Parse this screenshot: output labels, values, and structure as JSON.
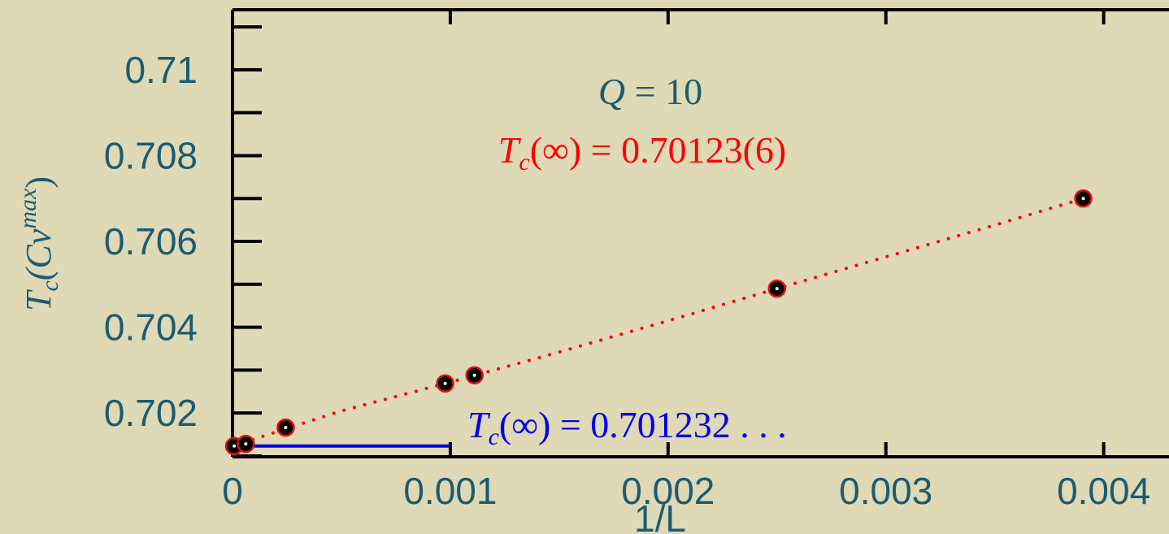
{
  "chart_data": {
    "type": "scatter",
    "xlabel": "1/L",
    "ylabel": {
      "base": "T",
      "sub": "c",
      "body": "(C",
      "v": "v",
      "sup": "max",
      "close": ")"
    },
    "xlim": [
      0,
      0.0043
    ],
    "ylim": [
      0.70098,
      0.7114
    ],
    "xticks": [
      {
        "value": 0,
        "label": "0"
      },
      {
        "value": 0.001,
        "label": "0.001"
      },
      {
        "value": 0.002,
        "label": "0.002"
      },
      {
        "value": 0.003,
        "label": "0.003"
      },
      {
        "value": 0.004,
        "label": "0.004"
      }
    ],
    "yticks": [
      {
        "value": 0.702,
        "label": "0.702"
      },
      {
        "value": 0.704,
        "label": "0.704"
      },
      {
        "value": 0.706,
        "label": "0.706"
      },
      {
        "value": 0.708,
        "label": "0.708"
      },
      {
        "value": 0.71,
        "label": "0.71"
      }
    ],
    "y_minor_ticks": [
      0.701,
      0.703,
      0.705,
      0.707,
      0.709,
      0.711
    ],
    "series": [
      {
        "points": [
          {
            "x": 7.6e-06,
            "y": 0.70123
          },
          {
            "x": 6.1e-05,
            "y": 0.70128
          },
          {
            "x": 0.0002441,
            "y": 0.70166
          },
          {
            "x": 0.0009766,
            "y": 0.70269
          },
          {
            "x": 0.0011111,
            "y": 0.70288
          },
          {
            "x": 0.0025,
            "y": 0.7049
          },
          {
            "x": 0.0039063,
            "y": 0.707
          }
        ],
        "marker_color": "#000000",
        "marker_edge": "#e01010"
      }
    ],
    "fit_line": {
      "style": "dotted",
      "color": "#ff0000",
      "points": [
        {
          "x": 0.0,
          "y": 0.70123
        },
        {
          "x": 0.0005,
          "y": 0.70205
        },
        {
          "x": 0.001,
          "y": 0.70272
        },
        {
          "x": 0.0015,
          "y": 0.70342
        },
        {
          "x": 0.002,
          "y": 0.70415
        },
        {
          "x": 0.0025,
          "y": 0.7049
        },
        {
          "x": 0.003,
          "y": 0.70564
        },
        {
          "x": 0.0035,
          "y": 0.70638
        },
        {
          "x": 0.0039063,
          "y": 0.707
        }
      ]
    },
    "exact_line": {
      "color": "#0000ee",
      "x": [
        0,
        0.001
      ],
      "y": 0.701232
    },
    "annotations": {
      "q_label": {
        "lhs": "Q",
        "rhs": " = 10",
        "color": "#1c5c73"
      },
      "fit_label": {
        "base": "T",
        "sub": "c",
        "rhs": "(∞) = 0.70123(6)",
        "color": "#ff0000"
      },
      "exact_label": {
        "base": "T",
        "sub": "c",
        "rhs": "(∞) = 0.701232 . . .",
        "color": "#0000ee"
      }
    },
    "colors": {
      "background": "#dfd9b5",
      "axis": "#000000",
      "label_text": "#1c5c73"
    }
  }
}
